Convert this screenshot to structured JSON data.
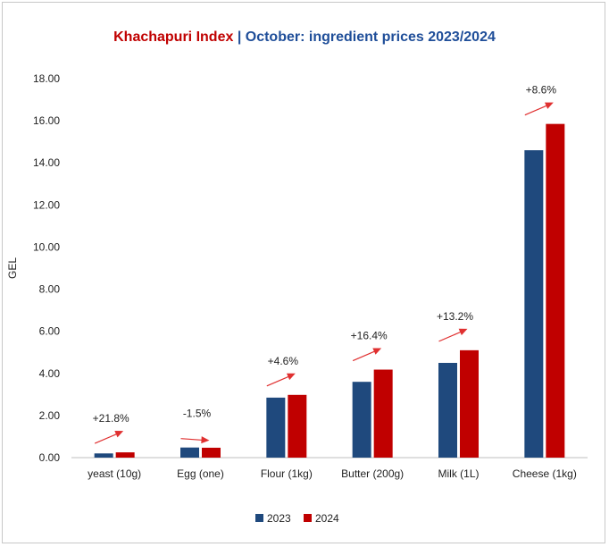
{
  "chart_data": {
    "type": "bar",
    "title": {
      "brand": "Khachapuri Index",
      "separator": "|",
      "rest": "October: ingredient prices 2023/2024"
    },
    "ylabel": "GEL",
    "xlabel": "",
    "ylim": [
      0,
      18
    ],
    "ytick_labels": [
      "0.00",
      "2.00",
      "4.00",
      "6.00",
      "8.00",
      "10.00",
      "12.00",
      "14.00",
      "16.00",
      "18.00"
    ],
    "categories": [
      "yeast (10g)",
      "Egg (one)",
      "Flour (1kg)",
      "Butter (200g)",
      "Milk (1L)",
      "Cheese (1kg)"
    ],
    "series": [
      {
        "name": "2023",
        "color": "#1f497d",
        "values": [
          0.2,
          0.48,
          2.85,
          3.6,
          4.5,
          14.6
        ]
      },
      {
        "name": "2024",
        "color": "#c00000",
        "values": [
          0.25,
          0.47,
          2.98,
          4.18,
          5.1,
          15.85
        ]
      }
    ],
    "change_labels": [
      "+21.8%",
      "-1.5%",
      "+4.6%",
      "+16.4%",
      "+13.2%",
      "+8.6%"
    ],
    "arrow_color": "#e03030",
    "grid": false,
    "legend": "bottom-center"
  }
}
